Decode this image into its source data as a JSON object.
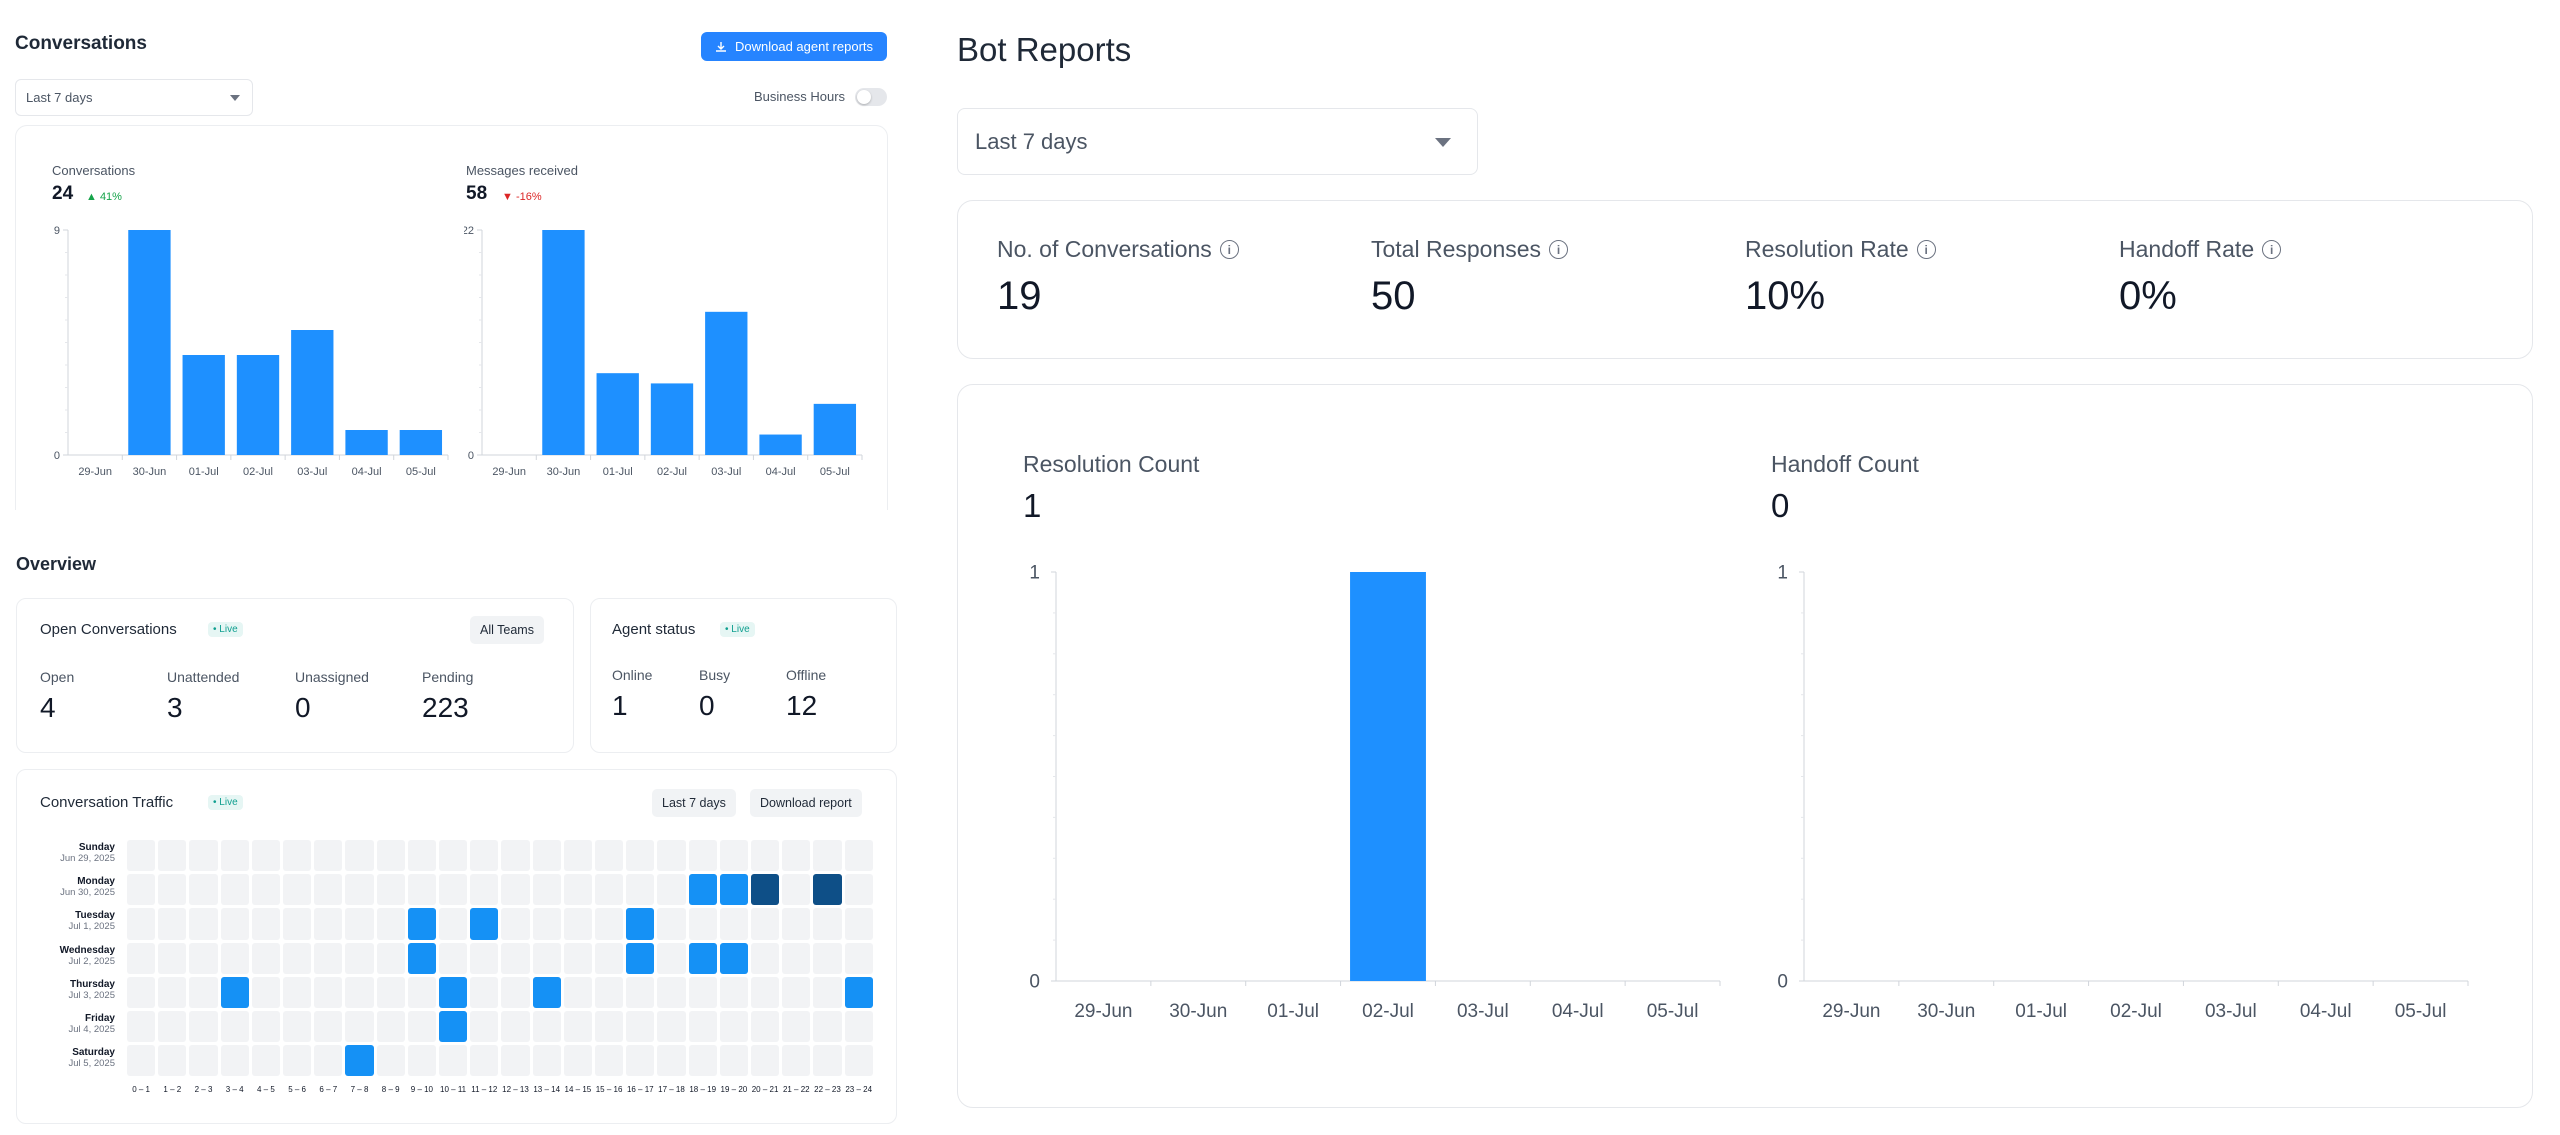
{
  "conversations": {
    "title": "Conversations",
    "download_label": "Download agent reports",
    "period": "Last 7 days",
    "business_hours_label": "Business Hours",
    "charts": [
      {
        "title": "Conversations",
        "value": "24",
        "delta": "▲ 41%"
      },
      {
        "title": "Messages received",
        "value": "58",
        "delta": "▼ -16%"
      }
    ]
  },
  "overview": {
    "title": "Overview",
    "open_conversations": {
      "title": "Open Conversations",
      "live": "• Live",
      "filter": "All Teams",
      "stats": [
        {
          "label": "Open",
          "value": "4"
        },
        {
          "label": "Unattended",
          "value": "3"
        },
        {
          "label": "Unassigned",
          "value": "0"
        },
        {
          "label": "Pending",
          "value": "223"
        }
      ]
    },
    "agent_status": {
      "title": "Agent status",
      "live": "• Live",
      "stats": [
        {
          "label": "Online",
          "value": "1"
        },
        {
          "label": "Busy",
          "value": "0"
        },
        {
          "label": "Offline",
          "value": "12"
        }
      ]
    },
    "traffic": {
      "title": "Conversation Traffic",
      "live": "• Live",
      "period": "Last 7 days",
      "download_label": "Download report",
      "days": [
        {
          "name": "Sunday",
          "date": "Jun 29, 2025"
        },
        {
          "name": "Monday",
          "date": "Jun 30, 2025"
        },
        {
          "name": "Tuesday",
          "date": "Jul 1, 2025"
        },
        {
          "name": "Wednesday",
          "date": "Jul 2, 2025"
        },
        {
          "name": "Thursday",
          "date": "Jul 3, 2025"
        },
        {
          "name": "Friday",
          "date": "Jul 4, 2025"
        },
        {
          "name": "Saturday",
          "date": "Jul 5, 2025"
        }
      ],
      "hours": [
        "0 – 1",
        "1 – 2",
        "2 – 3",
        "3 – 4",
        "4 – 5",
        "5 – 6",
        "6 – 7",
        "7 – 8",
        "8 – 9",
        "9 – 10",
        "10 – 11",
        "11 – 12",
        "12 – 13",
        "13 – 14",
        "14 – 15",
        "15 – 16",
        "16 – 17",
        "17 – 18",
        "18 – 19",
        "19 – 20",
        "20 – 21",
        "21 – 22",
        "22 – 23",
        "23 – 24"
      ],
      "cells": [
        [
          0,
          0,
          0,
          0,
          0,
          0,
          0,
          0,
          0,
          0,
          0,
          0,
          0,
          0,
          0,
          0,
          0,
          0,
          0,
          0,
          0,
          0,
          0,
          0
        ],
        [
          0,
          0,
          0,
          0,
          0,
          0,
          0,
          0,
          0,
          0,
          0,
          0,
          0,
          0,
          0,
          0,
          0,
          0,
          1,
          1,
          2,
          0,
          2,
          0
        ],
        [
          0,
          0,
          0,
          0,
          0,
          0,
          0,
          0,
          0,
          1,
          0,
          1,
          0,
          0,
          0,
          0,
          1,
          0,
          0,
          0,
          0,
          0,
          0,
          0
        ],
        [
          0,
          0,
          0,
          0,
          0,
          0,
          0,
          0,
          0,
          1,
          0,
          0,
          0,
          0,
          0,
          0,
          1,
          0,
          1,
          1,
          0,
          0,
          0,
          0
        ],
        [
          0,
          0,
          0,
          1,
          0,
          0,
          0,
          0,
          0,
          0,
          1,
          0,
          0,
          1,
          0,
          0,
          0,
          0,
          0,
          0,
          0,
          0,
          0,
          1
        ],
        [
          0,
          0,
          0,
          0,
          0,
          0,
          0,
          0,
          0,
          0,
          1,
          0,
          0,
          0,
          0,
          0,
          0,
          0,
          0,
          0,
          0,
          0,
          0,
          0
        ],
        [
          0,
          0,
          0,
          0,
          0,
          0,
          0,
          1,
          0,
          0,
          0,
          0,
          0,
          0,
          0,
          0,
          0,
          0,
          0,
          0,
          0,
          0,
          0,
          0
        ]
      ],
      "colors": {
        "empty": "#f2f3f5",
        "low": "#1591f5",
        "high": "#0e4f87"
      }
    }
  },
  "bot_reports": {
    "title": "Bot Reports",
    "period": "Last 7 days",
    "stats": [
      {
        "label": "No. of Conversations",
        "value": "19"
      },
      {
        "label": "Total Responses",
        "value": "50"
      },
      {
        "label": "Resolution Rate",
        "value": "10%"
      },
      {
        "label": "Handoff Rate",
        "value": "0%"
      }
    ],
    "charts": [
      {
        "title": "Resolution Count",
        "value": "1"
      },
      {
        "title": "Handoff Count",
        "value": "0"
      }
    ]
  },
  "chart_data": [
    {
      "type": "bar",
      "title": "Conversations",
      "categories": [
        "29-Jun",
        "30-Jun",
        "01-Jul",
        "02-Jul",
        "03-Jul",
        "04-Jul",
        "05-Jul"
      ],
      "values": [
        0,
        9,
        4,
        4,
        5,
        1,
        1
      ],
      "yticks": [
        "0",
        "9"
      ],
      "ylim": [
        0,
        9
      ],
      "color": "#1e90ff"
    },
    {
      "type": "bar",
      "title": "Messages received",
      "categories": [
        "29-Jun",
        "30-Jun",
        "01-Jul",
        "02-Jul",
        "03-Jul",
        "04-Jul",
        "05-Jul"
      ],
      "values": [
        0,
        22,
        8,
        7,
        14,
        2,
        5
      ],
      "yticks": [
        "0",
        "22"
      ],
      "ylim": [
        0,
        22
      ],
      "color": "#1e90ff"
    },
    {
      "type": "bar",
      "title": "Resolution Count",
      "categories": [
        "29-Jun",
        "30-Jun",
        "01-Jul",
        "02-Jul",
        "03-Jul",
        "04-Jul",
        "05-Jul"
      ],
      "values": [
        0,
        0,
        0,
        1,
        0,
        0,
        0
      ],
      "yticks": [
        "0",
        "1"
      ],
      "ylim": [
        0,
        1
      ],
      "color": "#1e90ff"
    },
    {
      "type": "bar",
      "title": "Handoff Count",
      "categories": [
        "29-Jun",
        "30-Jun",
        "01-Jul",
        "02-Jul",
        "03-Jul",
        "04-Jul",
        "05-Jul"
      ],
      "values": [
        0,
        0,
        0,
        0,
        0,
        0,
        0
      ],
      "yticks": [
        "0",
        "1"
      ],
      "ylim": [
        0,
        1
      ],
      "color": "#1e90ff"
    }
  ]
}
